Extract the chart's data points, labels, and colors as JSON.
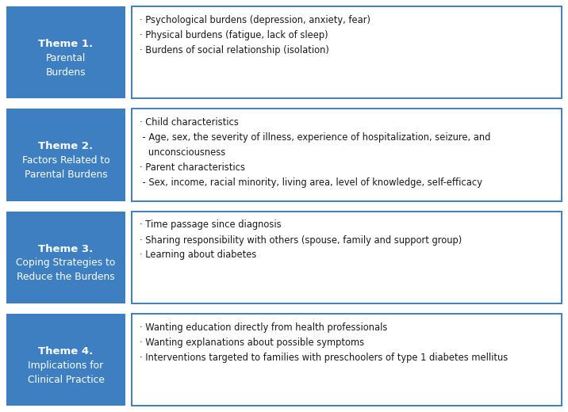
{
  "themes": [
    {
      "title_bold": "Theme 1.",
      "title_normal": "Parental\nBurdens",
      "box_color": "#3d7fc1",
      "content_lines": [
        "· Psychological burdens (depression, anxiety, fear)",
        "· Physical burdens (fatigue, lack of sleep)",
        "· Burdens of social relationship (isolation)"
      ]
    },
    {
      "title_bold": "Theme 2.",
      "title_normal": "Factors Related to\nParental Burdens",
      "box_color": "#3d7fc1",
      "content_lines": [
        "· Child characteristics",
        " - Age, sex, the severity of illness, experience of hospitalization, seizure, and",
        "   unconsciousness",
        "· Parent characteristics",
        " - Sex, income, racial minority, living area, level of knowledge, self-efficacy"
      ]
    },
    {
      "title_bold": "Theme 3.",
      "title_normal": "Coping Strategies to\nReduce the Burdens",
      "box_color": "#3d7fc1",
      "content_lines": [
        "· Time passage since diagnosis",
        "· Sharing responsibility with others (spouse, family and support group)",
        "· Learning about diabetes"
      ]
    },
    {
      "title_bold": "Theme 4.",
      "title_normal": "Implications for\nClinical Practice",
      "box_color": "#3d7fc1",
      "content_lines": [
        "· Wanting education directly from health professionals",
        "· Wanting explanations about possible symptoms",
        "· Interventions targeted to families with preschoolers of type 1 diabetes mellitus"
      ]
    }
  ],
  "background_color": "#ffffff",
  "border_color": "#3d7fc1",
  "text_color": "#1a1a1a"
}
